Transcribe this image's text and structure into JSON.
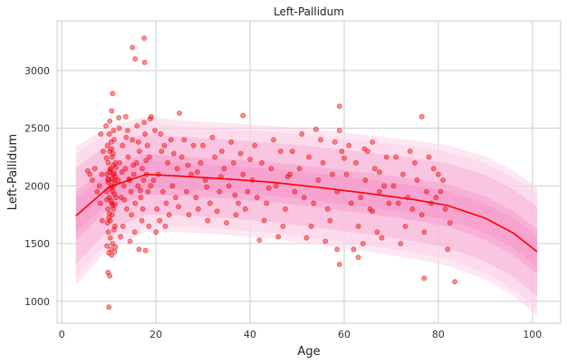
{
  "chart_data": {
    "type": "scatter",
    "title": "Left-Pallidum",
    "xlabel": "Age",
    "ylabel": "Left-Pallidum",
    "xlim": [
      -1,
      106
    ],
    "ylim": [
      810,
      3430
    ],
    "x_ticks": [
      0,
      20,
      40,
      60,
      80,
      100
    ],
    "y_ticks": [
      1000,
      1500,
      2000,
      2500,
      3000
    ],
    "grid": true,
    "legend": "none",
    "colors": {
      "points": "#ff0000",
      "mean_line": "#ff0000",
      "band_inner": "#f06ab4",
      "band_middle": "#f59ccc",
      "band_outer": "#fbd3e8",
      "grid": "#cccccc",
      "axes_border": "#cccccc"
    },
    "series": [
      {
        "kind": "percentile_curves",
        "x": [
          3,
          10,
          18,
          25,
          35,
          45,
          55,
          65,
          75,
          82,
          90,
          96,
          101
        ],
        "mean": [
          1740,
          1990,
          2100,
          2085,
          2060,
          2030,
          1985,
          1935,
          1880,
          1830,
          1720,
          1590,
          1430
        ],
        "sd": [
          210,
          185,
          175,
          170,
          170,
          172,
          175,
          177,
          180,
          183,
          187,
          190,
          195
        ]
      },
      {
        "kind": "scatter",
        "points": [
          [
            9.5,
            1950
          ],
          [
            9.6,
            2100
          ],
          [
            9.8,
            1800
          ],
          [
            9.9,
            2200
          ],
          [
            10.0,
            2050
          ],
          [
            10.1,
            1900
          ],
          [
            10.2,
            2300
          ],
          [
            10.3,
            1700
          ],
          [
            10.4,
            2150
          ],
          [
            10.5,
            2000
          ],
          [
            10.6,
            1850
          ],
          [
            10.7,
            2250
          ],
          [
            10.8,
            1950
          ],
          [
            10.9,
            2100
          ],
          [
            11.0,
            1800
          ],
          [
            11.1,
            2400
          ],
          [
            11.2,
            2050
          ],
          [
            11.3,
            1650
          ],
          [
            11.4,
            2200
          ],
          [
            11.5,
            1900
          ],
          [
            9.7,
            2350
          ],
          [
            9.9,
            1600
          ],
          [
            10.1,
            2450
          ],
          [
            10.3,
            1550
          ],
          [
            10.5,
            2380
          ],
          [
            10.7,
            1750
          ],
          [
            10.9,
            2280
          ],
          [
            11.1,
            1620
          ],
          [
            11.3,
            2020
          ],
          [
            11.5,
            2160
          ],
          [
            9.6,
            1880
          ],
          [
            9.8,
            2060
          ],
          [
            10.0,
            1720
          ],
          [
            10.2,
            2120
          ],
          [
            10.4,
            1980
          ],
          [
            10.6,
            2320
          ],
          [
            10.8,
            1830
          ],
          [
            11.0,
            2180
          ],
          [
            11.2,
            1930
          ],
          [
            11.4,
            2080
          ],
          [
            9.5,
            2240
          ],
          [
            9.7,
            1680
          ],
          [
            9.9,
            2030
          ],
          [
            10.1,
            1760
          ],
          [
            10.3,
            2140
          ],
          [
            10.5,
            1870
          ],
          [
            10.7,
            2060
          ],
          [
            10.9,
            1990
          ],
          [
            11.1,
            2110
          ],
          [
            11.3,
            1840
          ],
          [
            9.6,
            1480
          ],
          [
            10.0,
            1420
          ],
          [
            10.4,
            1450
          ],
          [
            10.8,
            1500
          ],
          [
            11.2,
            1430
          ],
          [
            9.8,
            1250
          ],
          [
            10.2,
            1220
          ],
          [
            10.0,
            950
          ],
          [
            10.6,
            1400
          ],
          [
            11.4,
            1470
          ],
          [
            9.4,
            2520
          ],
          [
            10.2,
            2560
          ],
          [
            11.0,
            2480
          ],
          [
            10.6,
            2650
          ],
          [
            10.8,
            2800
          ],
          [
            8.0,
            2000
          ],
          [
            8.5,
            2100
          ],
          [
            8.2,
            1850
          ],
          [
            7.5,
            1950
          ],
          [
            7.0,
            2150
          ],
          [
            6.5,
            2050
          ],
          [
            6.0,
            2100
          ],
          [
            8.8,
            2300
          ],
          [
            8.6,
            1700
          ],
          [
            8.3,
            2450
          ],
          [
            5.5,
            2130
          ],
          [
            12.0,
            2050
          ],
          [
            12.3,
            2200
          ],
          [
            12.6,
            1900
          ],
          [
            12.9,
            2350
          ],
          [
            13.2,
            2000
          ],
          [
            13.5,
            2150
          ],
          [
            13.8,
            1800
          ],
          [
            14.1,
            2250
          ],
          [
            14.4,
            2050
          ],
          [
            14.7,
            1950
          ],
          [
            15.0,
            2400
          ],
          [
            15.3,
            2100
          ],
          [
            15.6,
            1850
          ],
          [
            15.9,
            2200
          ],
          [
            16.2,
            2000
          ],
          [
            16.5,
            2300
          ],
          [
            16.8,
            1900
          ],
          [
            17.1,
            2150
          ],
          [
            17.4,
            2050
          ],
          [
            17.7,
            2450
          ],
          [
            18.0,
            2100
          ],
          [
            18.3,
            1950
          ],
          [
            18.6,
            2250
          ],
          [
            18.9,
            2000
          ],
          [
            12.2,
            2500
          ],
          [
            13.0,
            1650
          ],
          [
            14.0,
            2480
          ],
          [
            15.5,
            1600
          ],
          [
            16.0,
            2520
          ],
          [
            17.0,
            1700
          ],
          [
            17.5,
            2550
          ],
          [
            18.5,
            1650
          ],
          [
            12.5,
            1560
          ],
          [
            13.7,
            2420
          ],
          [
            14.8,
            1750
          ],
          [
            16.3,
            2380
          ],
          [
            17.2,
            1800
          ],
          [
            18.2,
            2350
          ],
          [
            12.8,
            2120
          ],
          [
            13.3,
            1880
          ],
          [
            14.3,
            2060
          ],
          [
            15.2,
            2180
          ],
          [
            16.7,
            1960
          ],
          [
            17.9,
            2220
          ],
          [
            15.0,
            3200
          ],
          [
            17.5,
            3280
          ],
          [
            17.6,
            3070
          ],
          [
            15.6,
            3100
          ],
          [
            16.4,
            1450
          ],
          [
            17.8,
            1440
          ],
          [
            14.5,
            1520
          ],
          [
            19.0,
            2600
          ],
          [
            18.8,
            2580
          ],
          [
            13.6,
            2600
          ],
          [
            12.1,
            2590
          ],
          [
            19.5,
            2050
          ],
          [
            20.5,
            2100
          ],
          [
            21.5,
            1950
          ],
          [
            22.5,
            2200
          ],
          [
            23.5,
            2000
          ],
          [
            24.5,
            2150
          ],
          [
            20.2,
            1800
          ],
          [
            21.2,
            2300
          ],
          [
            22.2,
            1850
          ],
          [
            23.2,
            2400
          ],
          [
            24.2,
            1900
          ],
          [
            19.8,
            2480
          ],
          [
            20.8,
            1700
          ],
          [
            21.8,
            2350
          ],
          [
            22.8,
            1750
          ],
          [
            23.8,
            2280
          ],
          [
            24.8,
            1820
          ],
          [
            20.0,
            1600
          ],
          [
            21.0,
            2450
          ],
          [
            22.0,
            1650
          ],
          [
            25.5,
            2250
          ],
          [
            26.5,
            1950
          ],
          [
            27.5,
            2100
          ],
          [
            28.5,
            1900
          ],
          [
            29.5,
            2200
          ],
          [
            26.0,
            2400
          ],
          [
            27.0,
            1750
          ],
          [
            28.0,
            2350
          ],
          [
            29.0,
            1800
          ],
          [
            25.0,
            2630
          ],
          [
            30.5,
            2050
          ],
          [
            31.5,
            1850
          ],
          [
            32.5,
            2250
          ],
          [
            33.5,
            1950
          ],
          [
            34.5,
            2150
          ],
          [
            30.0,
            2350
          ],
          [
            31.0,
            1700
          ],
          [
            32.0,
            2420
          ],
          [
            33.0,
            1780
          ],
          [
            34.0,
            2300
          ],
          [
            35.5,
            2000
          ],
          [
            36.5,
            2200
          ],
          [
            37.5,
            1850
          ],
          [
            38.5,
            2100
          ],
          [
            39.5,
            1950
          ],
          [
            35.0,
            1680
          ],
          [
            36.0,
            2380
          ],
          [
            37.0,
            1750
          ],
          [
            38.0,
            2280
          ],
          [
            39.0,
            1800
          ],
          [
            38.5,
            2610
          ],
          [
            40.5,
            2050
          ],
          [
            41.5,
            1900
          ],
          [
            42.5,
            2200
          ],
          [
            43.5,
            1850
          ],
          [
            44.5,
            2150
          ],
          [
            45.5,
            2000
          ],
          [
            46.5,
            2300
          ],
          [
            47.5,
            1800
          ],
          [
            48.5,
            2100
          ],
          [
            49.5,
            1950
          ],
          [
            41.0,
            2350
          ],
          [
            43.0,
            1700
          ],
          [
            45.0,
            2400
          ],
          [
            47.0,
            1650
          ],
          [
            49.0,
            2300
          ],
          [
            42.0,
            1530
          ],
          [
            46.0,
            1560
          ],
          [
            50.5,
            2150
          ],
          [
            51.5,
            1900
          ],
          [
            52.5,
            2250
          ],
          [
            53.5,
            1850
          ],
          [
            54.5,
            2050
          ],
          [
            55.5,
            2200
          ],
          [
            56.5,
            1800
          ],
          [
            57.5,
            2100
          ],
          [
            58.5,
            1950
          ],
          [
            59.5,
            2300
          ],
          [
            51.0,
            2450
          ],
          [
            53.0,
            1650
          ],
          [
            55.0,
            2400
          ],
          [
            57.0,
            1700
          ],
          [
            59.0,
            2480
          ],
          [
            52.0,
            1550
          ],
          [
            56.0,
            1520
          ],
          [
            58.0,
            2380
          ],
          [
            59.0,
            2690
          ],
          [
            59.0,
            1320
          ],
          [
            58.5,
            1450
          ],
          [
            54.0,
            2490
          ],
          [
            60.5,
            2100
          ],
          [
            61.5,
            1850
          ],
          [
            62.5,
            2200
          ],
          [
            63.5,
            1900
          ],
          [
            64.5,
            2050
          ],
          [
            65.5,
            1800
          ],
          [
            66.5,
            2150
          ],
          [
            67.5,
            1950
          ],
          [
            68.5,
            2000
          ],
          [
            69.5,
            1850
          ],
          [
            61.0,
            2350
          ],
          [
            63.0,
            1650
          ],
          [
            65.0,
            2300
          ],
          [
            67.0,
            1600
          ],
          [
            69.0,
            2250
          ],
          [
            62.0,
            1450
          ],
          [
            64.0,
            1500
          ],
          [
            66.0,
            2380
          ],
          [
            68.0,
            1550
          ],
          [
            63.0,
            1380
          ],
          [
            60.0,
            2240
          ],
          [
            64.3,
            2320
          ],
          [
            70.5,
            2000
          ],
          [
            71.5,
            1850
          ],
          [
            72.5,
            2100
          ],
          [
            73.5,
            1900
          ],
          [
            74.5,
            1800
          ],
          [
            75.5,
            2050
          ],
          [
            76.5,
            1750
          ],
          [
            77.5,
            1950
          ],
          [
            78.5,
            1850
          ],
          [
            79.5,
            1900
          ],
          [
            71.0,
            2250
          ],
          [
            73.0,
            1650
          ],
          [
            75.0,
            2200
          ],
          [
            77.0,
            1600
          ],
          [
            79.0,
            2150
          ],
          [
            72.0,
            1500
          ],
          [
            74.0,
            2300
          ],
          [
            76.5,
            2600
          ],
          [
            77.0,
            1200
          ],
          [
            80.5,
            1950
          ],
          [
            81.5,
            1800
          ],
          [
            80.0,
            2100
          ],
          [
            82.0,
            1450
          ],
          [
            82.5,
            1680
          ],
          [
            83.5,
            1170
          ],
          [
            81.0,
            2050
          ],
          [
            78.0,
            2250
          ],
          [
            66.0,
            1780
          ],
          [
            67.5,
            2120
          ],
          [
            44.0,
            1980
          ],
          [
            48.0,
            2080
          ],
          [
            30.8,
            1990
          ],
          [
            28.8,
            2120
          ],
          [
            36.8,
            1920
          ],
          [
            40.0,
            2230
          ],
          [
            26.8,
            2180
          ],
          [
            33.8,
            2080
          ]
        ]
      }
    ]
  }
}
